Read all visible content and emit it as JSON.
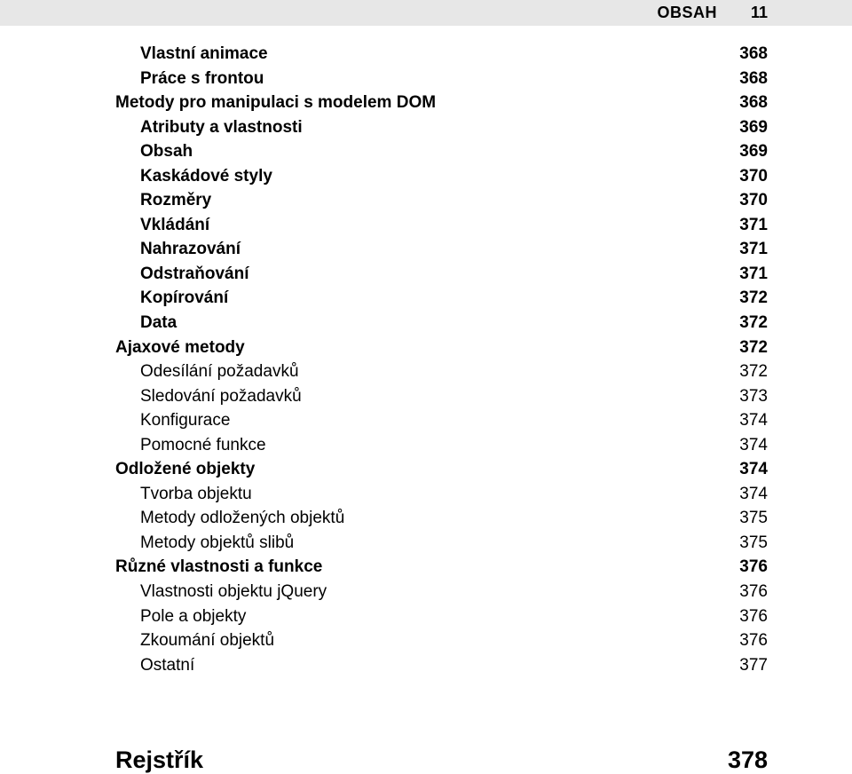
{
  "header": {
    "title": "Obsah",
    "page_number": "11"
  },
  "entries": [
    {
      "label": "Vlastní animace",
      "page": "368",
      "indent": 1,
      "weight": "bold"
    },
    {
      "label": "Práce s frontou",
      "page": "368",
      "indent": 1,
      "weight": "bold"
    },
    {
      "label": "Metody pro manipulaci s modelem DOM",
      "page": "368",
      "indent": 0,
      "weight": "bold"
    },
    {
      "label": "Atributy a vlastnosti",
      "page": "369",
      "indent": 1,
      "weight": "bold"
    },
    {
      "label": "Obsah",
      "page": "369",
      "indent": 1,
      "weight": "bold"
    },
    {
      "label": "Kaskádové styly",
      "page": "370",
      "indent": 1,
      "weight": "bold"
    },
    {
      "label": "Rozměry",
      "page": "370",
      "indent": 1,
      "weight": "bold"
    },
    {
      "label": "Vkládání",
      "page": "371",
      "indent": 1,
      "weight": "bold"
    },
    {
      "label": "Nahrazování",
      "page": "371",
      "indent": 1,
      "weight": "bold"
    },
    {
      "label": "Odstraňování",
      "page": "371",
      "indent": 1,
      "weight": "bold"
    },
    {
      "label": "Kopírování",
      "page": "372",
      "indent": 1,
      "weight": "bold"
    },
    {
      "label": "Data",
      "page": "372",
      "indent": 1,
      "weight": "bold"
    },
    {
      "label": "Ajaxové metody",
      "page": "372",
      "indent": 0,
      "weight": "bold"
    },
    {
      "label": "Odesílání požadavků",
      "page": "372",
      "indent": 1,
      "weight": "normal"
    },
    {
      "label": "Sledování požadavků",
      "page": "373",
      "indent": 1,
      "weight": "normal"
    },
    {
      "label": "Konfigurace",
      "page": "374",
      "indent": 1,
      "weight": "normal"
    },
    {
      "label": "Pomocné funkce",
      "page": "374",
      "indent": 1,
      "weight": "normal"
    },
    {
      "label": "Odložené objekty",
      "page": "374",
      "indent": 0,
      "weight": "bold"
    },
    {
      "label": "Tvorba objektu",
      "page": "374",
      "indent": 1,
      "weight": "normal"
    },
    {
      "label": "Metody odložených objektů",
      "page": "375",
      "indent": 1,
      "weight": "normal"
    },
    {
      "label": "Metody objektů slibů",
      "page": "375",
      "indent": 1,
      "weight": "normal"
    },
    {
      "label": "Různé vlastnosti a funkce",
      "page": "376",
      "indent": 0,
      "weight": "bold"
    },
    {
      "label": "Vlastnosti objektu jQuery",
      "page": "376",
      "indent": 1,
      "weight": "normal"
    },
    {
      "label": "Pole a objekty",
      "page": "376",
      "indent": 1,
      "weight": "normal"
    },
    {
      "label": "Zkoumání objektů",
      "page": "376",
      "indent": 1,
      "weight": "normal"
    },
    {
      "label": "Ostatní",
      "page": "377",
      "indent": 1,
      "weight": "normal"
    }
  ],
  "index": {
    "label": "Rejstřík",
    "page": "378"
  },
  "style": {
    "background": "#ffffff",
    "header_bg": "#e7e7e7",
    "text_color": "#000000",
    "header_fontsize": 18,
    "entry_fontsize": 19,
    "index_fontsize": 27
  }
}
